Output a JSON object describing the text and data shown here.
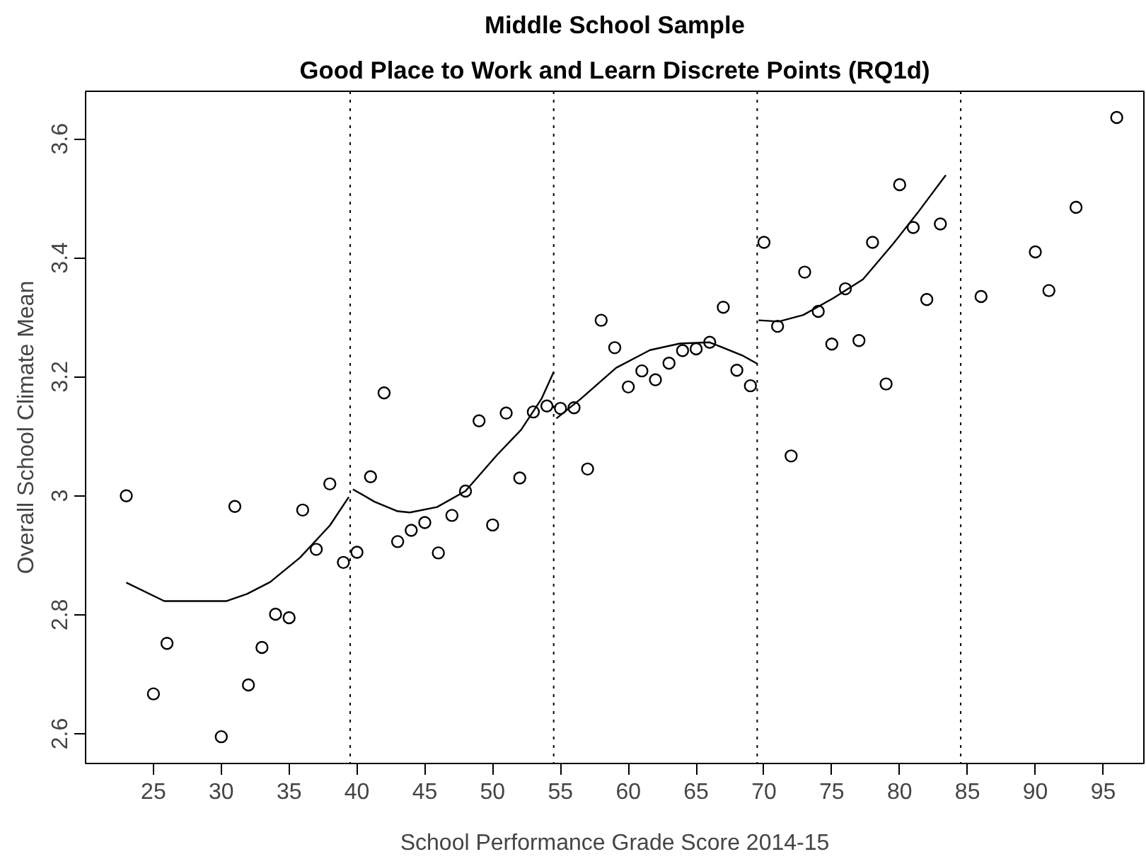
{
  "chart_data": {
    "type": "scatter",
    "title": "Middle School Sample",
    "subtitle": "Good Place to Work and Learn Discrete Points (RQ1d)",
    "xlabel": "School Performance Grade Score 2014-15",
    "ylabel": "Overall School Climate Mean",
    "xlim": [
      20,
      98
    ],
    "ylim": [
      2.55,
      3.68
    ],
    "xticks": [
      25,
      30,
      35,
      40,
      45,
      50,
      55,
      60,
      65,
      70,
      75,
      80,
      85,
      90,
      95
    ],
    "yticks": [
      2.6,
      2.8,
      3.0,
      3.2,
      3.4,
      3.6
    ],
    "grid": false,
    "ref_lines": [
      {
        "axis": "x",
        "value": 39.5,
        "color": "#000000",
        "line_style": "dotted"
      },
      {
        "axis": "x",
        "value": 54.5,
        "color": "#000000",
        "line_style": "dotted"
      },
      {
        "axis": "x",
        "value": 69.5,
        "color": "#000000",
        "line_style": "dotted"
      },
      {
        "axis": "x",
        "value": 84.5,
        "color": "#000000",
        "line_style": "dotted"
      }
    ],
    "series": [
      {
        "marker": "circle",
        "color": "#000000",
        "x": [
          23,
          25,
          26,
          30,
          31,
          32,
          33,
          34,
          35,
          36,
          37,
          38,
          39,
          40,
          41,
          42,
          43,
          44,
          45,
          46,
          47,
          48,
          49,
          50,
          51,
          52,
          53,
          54,
          55,
          56,
          57,
          58,
          59,
          60,
          61,
          62,
          63,
          64,
          65,
          66,
          67,
          68,
          69,
          70,
          71,
          72,
          73,
          74,
          75,
          76,
          77,
          78,
          79,
          80,
          81,
          82,
          83,
          86,
          90,
          91,
          93,
          96
        ],
        "values": [
          3.0,
          2.667,
          2.752,
          2.595,
          2.982,
          2.682,
          2.745,
          2.801,
          2.795,
          2.976,
          2.91,
          3.02,
          2.888,
          2.905,
          3.032,
          3.173,
          2.923,
          2.942,
          2.955,
          2.904,
          2.967,
          3.008,
          3.126,
          2.951,
          3.139,
          3.03,
          3.141,
          3.151,
          3.147,
          3.148,
          3.045,
          3.295,
          3.249,
          3.183,
          3.21,
          3.195,
          3.223,
          3.244,
          3.247,
          3.258,
          3.317,
          3.211,
          3.185,
          3.426,
          3.285,
          3.067,
          3.376,
          3.31,
          3.255,
          3.348,
          3.261,
          3.426,
          3.188,
          3.523,
          3.451,
          3.33,
          3.457,
          3.335,
          3.41,
          3.345,
          3.485,
          3.636
        ]
      },
      {
        "type": "line",
        "color": "#000000",
        "x": [
          23,
          25.8,
          30.4,
          31.9,
          33.6,
          35.8,
          38,
          39.4
        ],
        "values": [
          2.854,
          2.823,
          2.823,
          2.835,
          2.855,
          2.896,
          2.95,
          2.998
        ]
      },
      {
        "type": "line",
        "color": "#000000",
        "x": [
          39.7,
          41.3,
          43,
          43.9,
          45.9,
          48,
          50.3,
          52.1,
          53.6,
          54.5
        ],
        "values": [
          3.011,
          2.99,
          2.974,
          2.972,
          2.981,
          3.008,
          3.068,
          3.111,
          3.163,
          3.208
        ]
      },
      {
        "type": "line",
        "color": "#000000",
        "x": [
          54.7,
          56.5,
          59.1,
          61.6,
          63.8,
          66,
          68.4,
          69.5
        ],
        "values": [
          3.13,
          3.163,
          3.215,
          3.245,
          3.256,
          3.258,
          3.236,
          3.222
        ]
      },
      {
        "type": "line",
        "color": "#000000",
        "x": [
          69.6,
          71.1,
          72.9,
          75.1,
          77.3,
          79.5,
          81.3,
          83.4
        ],
        "values": [
          3.295,
          3.293,
          3.304,
          3.332,
          3.364,
          3.423,
          3.475,
          3.539
        ]
      }
    ]
  }
}
